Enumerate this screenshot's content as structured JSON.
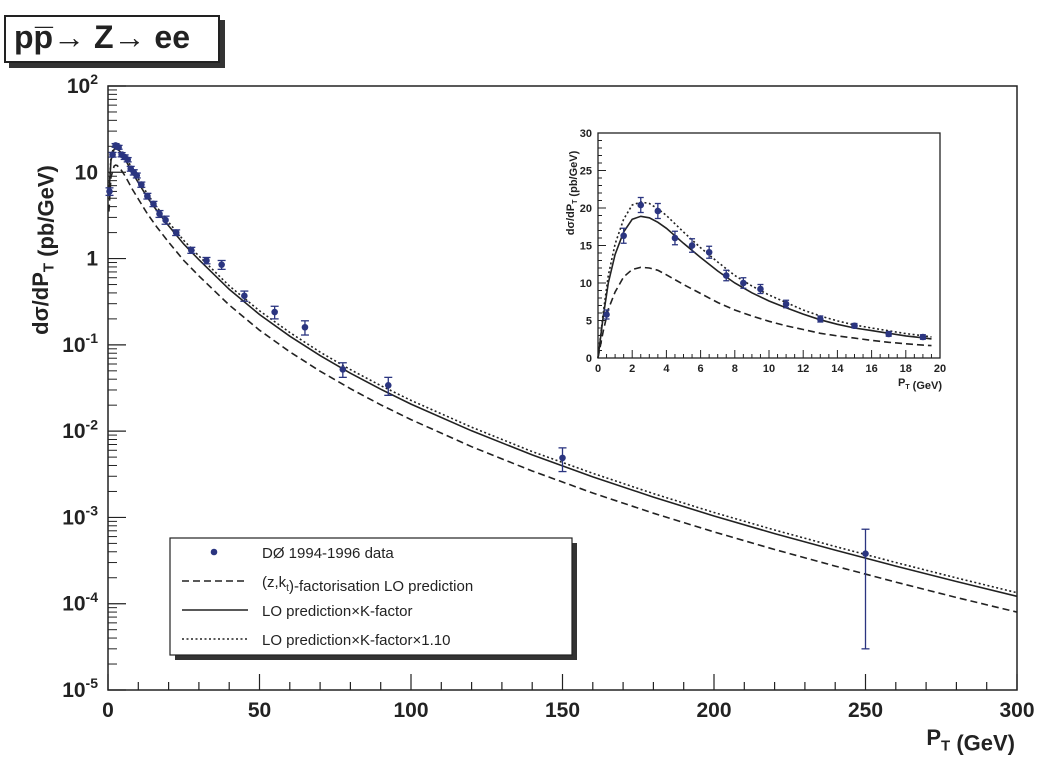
{
  "header": {
    "title": "pp̅→ Z→ ee"
  },
  "chart_data": [
    {
      "type": "scatter",
      "title": "pp̅→ Z→ ee",
      "xlabel": "P_T (GeV)",
      "ylabel": "dσ/dP_T (pb/GeV)",
      "xlim": [
        0,
        300
      ],
      "ylim": [
        1e-05,
        100
      ],
      "yscale": "log",
      "x_ticks": [
        "0",
        "50",
        "100",
        "150",
        "200",
        "250",
        "300"
      ],
      "y_ticks": [
        "10^-5",
        "10^-4",
        "10^-3",
        "10^-2",
        "10^-1",
        "1",
        "10",
        "10^2"
      ],
      "grid": false,
      "legend_position": "bottom-left",
      "series": [
        {
          "name": "DØ 1994-1996 data",
          "style": "points",
          "x": [
            0.5,
            1.5,
            2.5,
            3.5,
            4.5,
            5.5,
            6.5,
            7.5,
            8.5,
            9.5,
            11,
            13,
            15,
            17,
            19,
            22.5,
            27.5,
            32.5,
            37.5,
            45,
            55,
            65,
            77.5,
            92.5,
            150,
            250
          ],
          "y": [
            6,
            16,
            20.5,
            19.5,
            16,
            15,
            14,
            11,
            10,
            9.2,
            7.2,
            5.3,
            4.3,
            3.3,
            2.8,
            2.0,
            1.25,
            0.95,
            0.85,
            0.37,
            0.24,
            0.16,
            0.052,
            0.034,
            0.0049,
            0.00038
          ],
          "y_err": [
            0.6,
            1.0,
            1.0,
            1.0,
            0.9,
            0.9,
            0.8,
            0.7,
            0.7,
            0.6,
            0.5,
            0.4,
            0.3,
            0.3,
            0.3,
            0.15,
            0.1,
            0.08,
            0.1,
            0.05,
            0.04,
            0.03,
            0.01,
            0.008,
            0.0015,
            0.00035
          ]
        },
        {
          "name": "(z,k_t)-factorisation LO prediction",
          "style": "dashed",
          "x": [
            0.3,
            1,
            2,
            2.5,
            3,
            4,
            5,
            6,
            8,
            10,
            13,
            16,
            20,
            25,
            30,
            40,
            50,
            60,
            70,
            80,
            90,
            100,
            120,
            140,
            160,
            180,
            200,
            220,
            240,
            260,
            280,
            300
          ],
          "y": [
            3.5,
            8.8,
            11.8,
            12.1,
            12.0,
            11.1,
            9.8,
            8.6,
            6.4,
            4.9,
            3.3,
            2.35,
            1.55,
            0.95,
            0.63,
            0.29,
            0.148,
            0.083,
            0.0495,
            0.031,
            0.0202,
            0.0136,
            0.0066,
            0.00345,
            0.00192,
            0.00112,
            0.00068,
            0.000425,
            0.000273,
            0.000178,
            0.000118,
            8e-05
          ]
        },
        {
          "name": "LO prediction×K-factor",
          "style": "solid",
          "x": [
            0.3,
            1,
            2,
            2.5,
            3,
            4,
            5,
            6,
            8,
            10,
            13,
            16,
            20,
            25,
            30,
            40,
            50,
            60,
            70,
            80,
            90,
            100,
            120,
            140,
            160,
            180,
            200,
            220,
            240,
            260,
            280,
            300
          ],
          "y": [
            5.4,
            13.8,
            18.5,
            18.9,
            18.7,
            17.3,
            15.3,
            13.4,
            10.0,
            7.6,
            5.1,
            3.65,
            2.4,
            1.47,
            0.97,
            0.44,
            0.225,
            0.126,
            0.075,
            0.047,
            0.0306,
            0.0206,
            0.0101,
            0.0053,
            0.00295,
            0.00172,
            0.00104,
            0.00065,
            0.000418,
            0.000273,
            0.000181,
            0.000122
          ]
        },
        {
          "name": "LO prediction×K-factor×1.10",
          "style": "dotted",
          "x": [
            0.3,
            1,
            2,
            2.5,
            3,
            4,
            5,
            6,
            8,
            10,
            13,
            16,
            20,
            25,
            30,
            40,
            50,
            60,
            70,
            80,
            90,
            100,
            120,
            140,
            160,
            180,
            200,
            220,
            240,
            260,
            280,
            300
          ],
          "y": [
            5.9,
            15.2,
            20.4,
            20.8,
            20.6,
            19.0,
            16.8,
            14.7,
            11.0,
            8.4,
            5.6,
            4.0,
            2.64,
            1.62,
            1.07,
            0.484,
            0.248,
            0.139,
            0.0825,
            0.0517,
            0.0337,
            0.0227,
            0.0111,
            0.0058,
            0.00325,
            0.00189,
            0.00114,
            0.000715,
            0.00046,
            0.0003,
            0.000199,
            0.000134
          ]
        }
      ]
    },
    {
      "type": "scatter",
      "title": "",
      "xlabel": "P_T (GeV)",
      "ylabel": "dσ/dP_T (pb/GeV)",
      "xlim": [
        0,
        20
      ],
      "ylim": [
        0,
        30
      ],
      "yscale": "linear",
      "x_ticks": [
        "0",
        "2",
        "4",
        "6",
        "8",
        "10",
        "12",
        "14",
        "16",
        "18",
        "20"
      ],
      "y_ticks": [
        "0",
        "5",
        "10",
        "15",
        "20",
        "25",
        "30"
      ],
      "grid": false,
      "series": [
        {
          "name": "DØ 1994-1996 data",
          "style": "points",
          "x": [
            0.5,
            1.5,
            2.5,
            3.5,
            4.5,
            5.5,
            6.5,
            7.5,
            8.5,
            9.5,
            11,
            13,
            15,
            17,
            19
          ],
          "y": [
            5.8,
            16.3,
            20.4,
            19.6,
            16.0,
            15.0,
            14.1,
            11.0,
            10.0,
            9.2,
            7.2,
            5.2,
            4.3,
            3.2,
            2.8
          ],
          "y_err": [
            0.6,
            1.0,
            1.0,
            1.0,
            0.9,
            0.9,
            0.8,
            0.7,
            0.7,
            0.6,
            0.5,
            0.4,
            0.3,
            0.3,
            0.3
          ]
        },
        {
          "name": "(z,k_t)-factorisation LO prediction",
          "style": "dashed",
          "x": [
            0,
            0.3,
            0.6,
            1,
            1.5,
            2,
            2.5,
            3,
            3.5,
            4,
            5,
            6,
            7,
            8,
            9,
            10,
            11,
            12,
            13,
            14,
            15,
            16,
            17,
            18,
            19,
            19.5
          ],
          "y": [
            0,
            3.5,
            6.5,
            8.8,
            10.8,
            11.8,
            12.1,
            12.0,
            11.7,
            11.1,
            9.8,
            8.6,
            7.4,
            6.4,
            5.6,
            4.9,
            4.3,
            3.8,
            3.3,
            2.95,
            2.65,
            2.35,
            2.1,
            1.9,
            1.72,
            1.65
          ]
        },
        {
          "name": "LO prediction×K-factor",
          "style": "solid",
          "x": [
            0,
            0.3,
            0.6,
            1,
            1.5,
            2,
            2.5,
            3,
            3.5,
            4,
            5,
            6,
            7,
            8,
            9,
            10,
            11,
            12,
            13,
            14,
            15,
            16,
            17,
            18,
            19,
            19.5
          ],
          "y": [
            0,
            5.4,
            10.0,
            13.8,
            16.8,
            18.5,
            18.9,
            18.7,
            18.1,
            17.3,
            15.3,
            13.4,
            11.6,
            10.0,
            8.7,
            7.6,
            6.7,
            5.85,
            5.1,
            4.5,
            4.0,
            3.65,
            3.3,
            2.95,
            2.7,
            2.55
          ]
        },
        {
          "name": "LO prediction×K-factor×1.10",
          "style": "dotted",
          "x": [
            0,
            0.3,
            0.6,
            1,
            1.5,
            2,
            2.5,
            3,
            3.5,
            4,
            5,
            6,
            7,
            8,
            9,
            10,
            11,
            12,
            13,
            14,
            15,
            16,
            17,
            18,
            19,
            19.5
          ],
          "y": [
            0,
            5.9,
            11.0,
            15.2,
            18.5,
            20.4,
            20.8,
            20.6,
            19.9,
            19.0,
            16.8,
            14.7,
            12.8,
            11.0,
            9.6,
            8.4,
            7.4,
            6.4,
            5.6,
            4.95,
            4.4,
            4.0,
            3.63,
            3.25,
            2.97,
            2.8
          ]
        }
      ]
    }
  ]
}
